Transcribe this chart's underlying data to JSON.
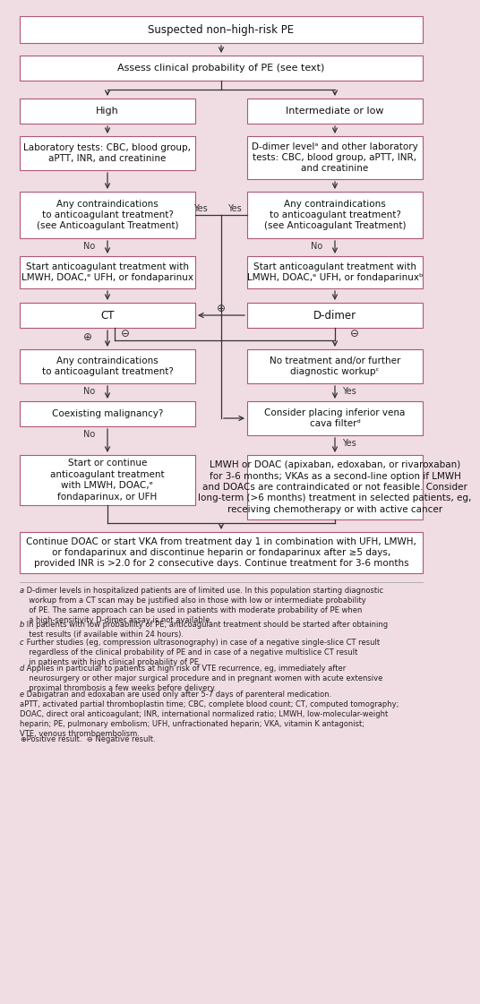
{
  "bg_color": "#f0dde4",
  "box_bg": "#ffffff",
  "box_border": "#b05870",
  "arrow_color": "#333333",
  "text_color": "#111111",
  "footnote_color": "#222222",
  "boxes": {
    "R0": {
      "text": "Suspected non–high-risk PE",
      "fs": 8.5
    },
    "R1": {
      "text": "Assess clinical probability of PE (see text)",
      "fs": 8
    },
    "R2L": {
      "text": "High",
      "fs": 8
    },
    "R2R": {
      "text": "Intermediate or low",
      "fs": 8
    },
    "R3L": {
      "text": "Laboratory tests: CBC, blood group,\naPTT, INR, and creatinine",
      "fs": 7.5
    },
    "R3R": {
      "text": "D-dimer levelᵃ and other laboratory\ntests: CBC, blood group, aPTT, INR,\nand creatinine",
      "fs": 7.5
    },
    "R4L": {
      "text": "Any contraindications\nto anticoagulant treatment?\n(see Anticoagulant Treatment)",
      "fs": 7.5
    },
    "R4R": {
      "text": "Any contraindications\nto anticoagulant treatment?\n(see Anticoagulant Treatment)",
      "fs": 7.5
    },
    "R5L": {
      "text": "Start anticoagulant treatment with\nLMWH, DOAC,ᵉ UFH, or fondaparinux",
      "fs": 7.5
    },
    "R5R": {
      "text": "Start anticoagulant treatment with\nLMWH, DOAC,ᵉ UFH, or fondaparinuxᵇ",
      "fs": 7.5
    },
    "R6L": {
      "text": "CT",
      "fs": 8.5
    },
    "R6R": {
      "text": "D-dimer",
      "fs": 8.5
    },
    "R7L": {
      "text": "Any contraindications\nto anticoagulant treatment?",
      "fs": 7.5
    },
    "R7R": {
      "text": "No treatment and/or further\ndiagnostic workupᶜ",
      "fs": 7.5
    },
    "R8L": {
      "text": "Coexisting malignancy?",
      "fs": 7.5
    },
    "R8R": {
      "text": "Consider placing inferior vena\ncava filterᵈ",
      "fs": 7.5
    },
    "R9L": {
      "text": "Start or continue\nanticoagulant treatment\nwith LMWH, DOAC,ᵉ\nfondaparinux, or UFH",
      "fs": 7.5
    },
    "R9R": {
      "text": "LMWH or DOAC (apixaban, edoxaban, or rivaroxaban)\nfor 3-6 months; VKAs as a second-line option if LMWH\nand DOACs are contraindicated or not feasible. Consider\nlong-term (>6 months) treatment in selected patients, eg,\nreceiving chemotherapy or with active cancer",
      "fs": 7.5
    },
    "R10": {
      "text": "Continue DOAC or start VKA from treatment day 1 in combination with UFH, LMWH,\nor fondaparinux and discontinue heparin or fondaparinux after ≥5 days,\nprovided INR is >2.0 for 2 consecutive days. Continue treatment for 3-6 months",
      "fs": 7.5
    }
  },
  "footnotes": [
    [
      "a",
      " D-dimer levels in hospitalized patients are of limited use. In this population starting diagnostic\n  workup from a CT scan may be justified also in those with low or intermediate probability\n  of PE. The same approach can be used in patients with moderate probability of PE when\n  a high-sensitivity D-dimer assay is not available."
    ],
    [
      "b",
      " In patients with low probability of PE, anticoagulant treatment should be started after obtaining\n  test results (if available within 24 hours)."
    ],
    [
      "c",
      " Further studies (eg, compression ultrasonography) in case of a negative single-slice CT result\n  regardless of the clinical probability of PE and in case of a negative multislice CT result\n  in patients with high clinical probability of PE."
    ],
    [
      "d",
      " Applies in particular to patients at high risk of VTE recurrence, eg, immediately after\n  neurosurgery or other major surgical procedure and in pregnant women with acute extensive\n  proximal thrombosis a few weeks before delivery."
    ],
    [
      "e",
      " Dabigatran and edoxaban are used only after 5-7 days of parenteral medication."
    ],
    [
      "",
      "aPTT, activated partial thromboplastin time; CBC, complete blood count; CT, computed tomography;\nDOAC, direct oral anticoagulant; INR, international normalized ratio; LMWH, low-molecular-weight\nheparin; PE, pulmonary embolism; UFH, unfractionated heparin; VKA, vitamin K antagonist;\nVTE, venous thromboembolism."
    ],
    [
      "⊕",
      " Positive result.  ⊖ Negative result."
    ]
  ]
}
